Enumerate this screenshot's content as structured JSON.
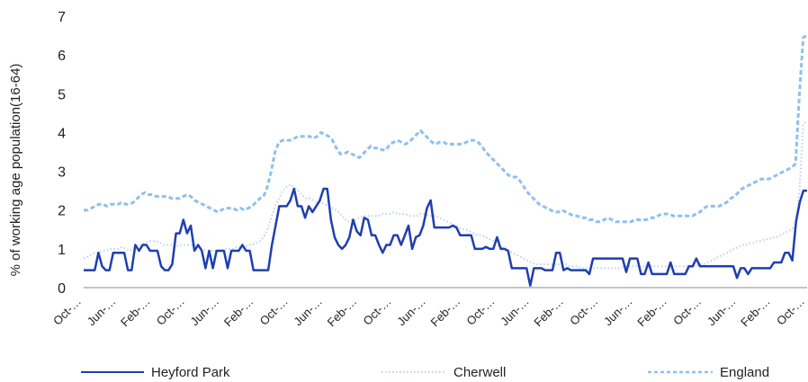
{
  "chart_data": {
    "type": "line",
    "ylabel": "% of working age population(16-64)",
    "xlabel": "",
    "ylim": [
      0,
      7
    ],
    "yticks": [
      "0",
      "1",
      "2",
      "3",
      "4",
      "5",
      "6",
      "7"
    ],
    "x_tick_labels": [
      "Oct-…",
      "Jun-…",
      "Feb-…",
      "Oct-…",
      "Jun-…",
      "Feb-…",
      "Oct-…",
      "Jun-…",
      "Feb-…",
      "Oct-…",
      "Jun-…",
      "Feb-…",
      "Oct-…",
      "Jun-…",
      "Feb-…",
      "Oct-…",
      "Jun-…",
      "Feb-…",
      "Oct-…",
      "Jun-…",
      "Feb-…",
      "Oct-…"
    ],
    "grid": false,
    "legend_position": "bottom",
    "colors": {
      "heyford": "#1f3fae",
      "cherwell": "#b8d2f2",
      "england": "#8ec0f0"
    },
    "series": [
      {
        "name": "Heyford Park",
        "style": "solid",
        "values": [
          0.45,
          0.45,
          0.45,
          0.45,
          0.9,
          0.55,
          0.45,
          0.45,
          0.9,
          0.9,
          0.9,
          0.9,
          0.45,
          0.45,
          1.1,
          0.95,
          1.1,
          1.1,
          0.95,
          0.95,
          0.95,
          0.55,
          0.45,
          0.45,
          0.6,
          1.4,
          1.4,
          1.75,
          1.4,
          1.6,
          0.95,
          1.1,
          0.95,
          0.5,
          0.95,
          0.5,
          0.95,
          0.95,
          0.95,
          0.5,
          0.95,
          0.95,
          0.95,
          1.1,
          0.95,
          0.95,
          0.45,
          0.45,
          0.45,
          0.45,
          0.45,
          1.1,
          1.6,
          2.1,
          2.1,
          2.1,
          2.25,
          2.55,
          2.1,
          2.1,
          1.8,
          2.1,
          1.95,
          2.1,
          2.25,
          2.55,
          2.55,
          1.75,
          1.3,
          1.1,
          1.0,
          1.1,
          1.3,
          1.75,
          1.45,
          1.35,
          1.8,
          1.75,
          1.35,
          1.35,
          1.1,
          0.9,
          1.1,
          1.1,
          1.35,
          1.35,
          1.1,
          1.35,
          1.6,
          1.0,
          1.3,
          1.35,
          1.6,
          2.05,
          2.25,
          1.55,
          1.55,
          1.55,
          1.55,
          1.55,
          1.6,
          1.55,
          1.35,
          1.35,
          1.35,
          1.35,
          1.0,
          1.0,
          1.0,
          1.05,
          1.0,
          1.0,
          1.3,
          1.0,
          1.0,
          0.95,
          0.5,
          0.5,
          0.5,
          0.5,
          0.5,
          0.05,
          0.5,
          0.5,
          0.5,
          0.45,
          0.45,
          0.45,
          0.9,
          0.9,
          0.45,
          0.5,
          0.45,
          0.45,
          0.45,
          0.45,
          0.45,
          0.35,
          0.75,
          0.75,
          0.75,
          0.75,
          0.75,
          0.75,
          0.75,
          0.75,
          0.75,
          0.4,
          0.75,
          0.75,
          0.75,
          0.35,
          0.35,
          0.65,
          0.35,
          0.35,
          0.35,
          0.35,
          0.35,
          0.65,
          0.35,
          0.35,
          0.35,
          0.35,
          0.55,
          0.55,
          0.75,
          0.55,
          0.55,
          0.55,
          0.55,
          0.55,
          0.55,
          0.55,
          0.55,
          0.55,
          0.55,
          0.25,
          0.5,
          0.5,
          0.35,
          0.5,
          0.5,
          0.5,
          0.5,
          0.5,
          0.5,
          0.65,
          0.65,
          0.65,
          0.9,
          0.9,
          0.7,
          1.7,
          2.2,
          2.5,
          2.5
        ]
      },
      {
        "name": "Cherwell",
        "style": "dotted",
        "values": [
          0.75,
          0.8,
          0.85,
          0.9,
          0.9,
          0.95,
          0.95,
          1.0,
          1.0,
          1.0,
          1.05,
          1.0,
          0.95,
          1.0,
          1.05,
          1.1,
          1.15,
          1.2,
          1.2,
          1.2,
          1.15,
          1.1,
          1.1,
          1.1,
          1.05,
          1.1,
          1.1,
          1.1,
          1.1,
          1.1,
          1.05,
          1.0,
          0.95,
          0.95,
          0.95,
          0.95,
          0.95,
          1.0,
          1.0,
          1.0,
          1.05,
          1.05,
          1.05,
          1.1,
          1.1,
          1.15,
          1.2,
          1.3,
          1.5,
          1.8,
          2.1,
          2.3,
          2.5,
          2.6,
          2.65,
          2.6,
          2.5,
          2.4,
          2.3,
          2.3,
          2.25,
          2.2,
          2.2,
          2.15,
          2.1,
          2.05,
          2.0,
          1.9,
          1.8,
          1.7,
          1.75,
          1.75,
          1.8,
          1.85,
          1.85,
          1.85,
          1.85,
          1.85,
          1.9,
          1.9,
          1.9,
          1.95,
          1.9,
          1.9,
          1.9,
          1.85,
          1.85,
          1.85,
          1.9,
          1.9,
          1.85,
          1.85,
          1.85,
          1.8,
          1.75,
          1.7,
          1.65,
          1.6,
          1.55,
          1.5,
          1.5,
          1.45,
          1.4,
          1.35,
          1.35,
          1.3,
          1.25,
          1.2,
          1.1,
          1.05,
          1.0,
          0.95,
          0.9,
          0.85,
          0.8,
          0.75,
          0.7,
          0.65,
          0.6,
          0.6,
          0.6,
          0.6,
          0.6,
          0.6,
          0.6,
          0.6,
          0.6,
          0.55,
          0.55,
          0.55,
          0.5,
          0.5,
          0.5,
          0.5,
          0.5,
          0.5,
          0.5,
          0.5,
          0.5,
          0.5,
          0.5,
          0.55,
          0.55,
          0.55,
          0.55,
          0.55,
          0.55,
          0.55,
          0.55,
          0.55,
          0.55,
          0.55,
          0.55,
          0.55,
          0.55,
          0.55,
          0.55,
          0.55,
          0.55,
          0.55,
          0.55,
          0.6,
          0.6,
          0.65,
          0.7,
          0.75,
          0.8,
          0.85,
          0.9,
          0.95,
          1.0,
          1.05,
          1.1,
          1.1,
          1.15,
          1.15,
          1.2,
          1.2,
          1.25,
          1.25,
          1.3,
          1.3,
          1.35,
          1.4,
          1.45,
          1.5,
          1.6,
          2.5,
          4.2,
          4.3
        ]
      },
      {
        "name": "England",
        "style": "dashed",
        "values": [
          2.0,
          2.0,
          2.05,
          2.1,
          2.15,
          2.15,
          2.1,
          2.15,
          2.15,
          2.15,
          2.2,
          2.15,
          2.15,
          2.2,
          2.3,
          2.4,
          2.45,
          2.4,
          2.4,
          2.35,
          2.35,
          2.35,
          2.35,
          2.3,
          2.3,
          2.3,
          2.35,
          2.4,
          2.35,
          2.25,
          2.2,
          2.15,
          2.1,
          2.05,
          2.0,
          1.95,
          2.0,
          2.05,
          2.05,
          2.05,
          2.0,
          2.05,
          2.0,
          2.05,
          2.1,
          2.2,
          2.3,
          2.35,
          2.6,
          3.0,
          3.5,
          3.75,
          3.8,
          3.8,
          3.8,
          3.85,
          3.9,
          3.9,
          3.9,
          3.9,
          3.85,
          3.9,
          4.0,
          3.95,
          3.9,
          3.8,
          3.6,
          3.45,
          3.45,
          3.5,
          3.45,
          3.4,
          3.35,
          3.45,
          3.55,
          3.65,
          3.6,
          3.6,
          3.55,
          3.55,
          3.7,
          3.75,
          3.8,
          3.75,
          3.7,
          3.75,
          3.85,
          3.95,
          4.05,
          3.95,
          3.85,
          3.75,
          3.7,
          3.75,
          3.75,
          3.7,
          3.7,
          3.7,
          3.7,
          3.7,
          3.75,
          3.8,
          3.8,
          3.75,
          3.65,
          3.5,
          3.4,
          3.3,
          3.2,
          3.1,
          3.0,
          2.9,
          2.85,
          2.85,
          2.75,
          2.6,
          2.45,
          2.35,
          2.25,
          2.15,
          2.1,
          2.05,
          2.0,
          1.95,
          1.95,
          2.0,
          1.95,
          1.9,
          1.85,
          1.85,
          1.8,
          1.8,
          1.75,
          1.75,
          1.7,
          1.7,
          1.75,
          1.8,
          1.75,
          1.7,
          1.7,
          1.7,
          1.7,
          1.7,
          1.75,
          1.75,
          1.75,
          1.75,
          1.8,
          1.8,
          1.85,
          1.9,
          1.9,
          1.9,
          1.85,
          1.85,
          1.85,
          1.85,
          1.85,
          1.85,
          1.9,
          1.95,
          2.05,
          2.1,
          2.1,
          2.1,
          2.1,
          2.15,
          2.2,
          2.3,
          2.35,
          2.45,
          2.55,
          2.6,
          2.65,
          2.7,
          2.75,
          2.8,
          2.8,
          2.8,
          2.85,
          2.9,
          2.95,
          3.0,
          3.05,
          3.1,
          3.2,
          5.0,
          6.45,
          6.5
        ]
      }
    ]
  },
  "legend": {
    "heyford_label": "Heyford Park",
    "cherwell_label": "Cherwell",
    "england_label": "England"
  }
}
